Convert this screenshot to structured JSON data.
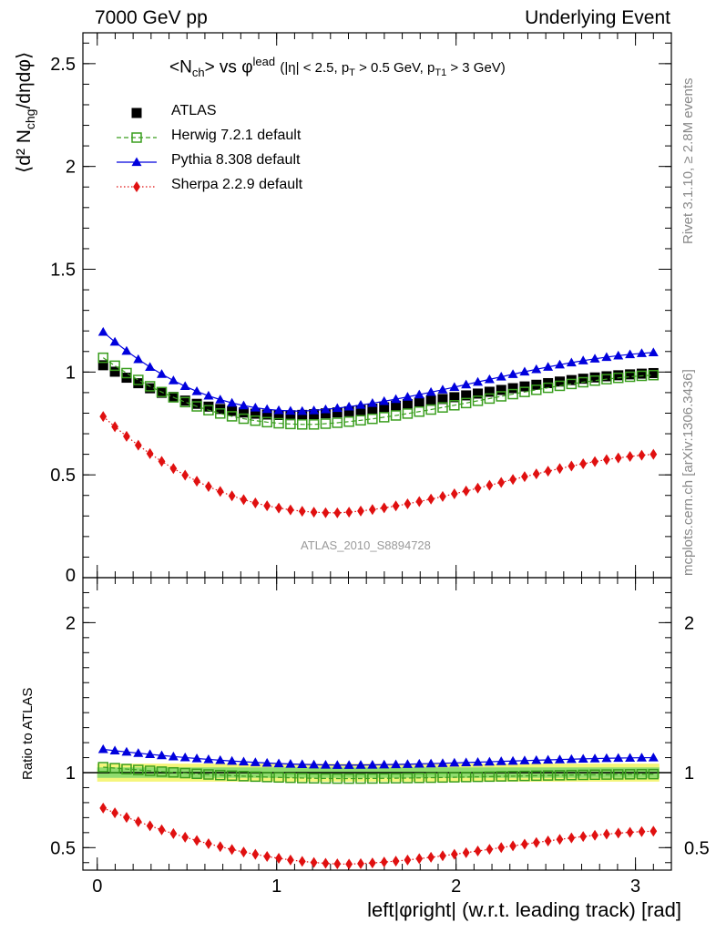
{
  "header": {
    "left": "7000 GeV pp",
    "right": "Underlying Event"
  },
  "side_labels": {
    "rivet": "Rivet 3.1.10, ≥ 2.8M events",
    "mcplots": "mcplots.cern.ch [arXiv:1306.3436]"
  },
  "watermark": "ATLAS_2010_S8894728",
  "chart_data": {
    "type": "scatter",
    "title_main": "<N",
    "title_sub": "ch",
    "title_mid": "> vs φ",
    "title_sup": "lead",
    "title_cut": "(|η| < 2.5, p",
    "title_cut_sub1": "T",
    "title_cut2": " > 0.5 GeV, p",
    "title_cut_sub2": "T1",
    "title_cut3": " > 3 GeV)",
    "ylabel_main": "⟨d² N",
    "ylabel_sub": "chg",
    "ylabel_end": "/dηdφ⟩",
    "ratio_ylabel": "Ratio to ATLAS",
    "xlabel": "left|φright| (w.r.t. leading track) [rad]",
    "xlim": [
      -0.08,
      3.2
    ],
    "ylim_main": [
      0,
      2.65
    ],
    "ylim_ratio": [
      0.35,
      2.3
    ],
    "x_ticks": [
      0,
      1,
      2,
      3
    ],
    "y_ticks_main": [
      0.5,
      1,
      1.5,
      2,
      2.5
    ],
    "y_ticks_main_labels": [
      "0.5",
      "1",
      "1.5",
      "2",
      "2.5"
    ],
    "y_tick_zero_label": "0",
    "y_ticks_ratio": [
      0.5,
      1,
      2
    ],
    "y_ticks_ratio_labels": [
      "0.5",
      "1",
      "2"
    ],
    "x_tick_labels": [
      "0",
      "1",
      "2",
      "3"
    ],
    "x_ratio_range": [
      0.0,
      3.1
    ],
    "series": [
      {
        "name": "ATLAS",
        "color": "#000000",
        "marker": "square-filled",
        "line": "none",
        "y_start": 1.05,
        "y_min": 0.79,
        "y_min_x": 1.1,
        "y_end": 0.995,
        "ratio": null
      },
      {
        "name": "Herwig 7.2.1 default",
        "color": "#3a9e1e",
        "marker": "square-open",
        "line": "dashed",
        "y_start": 1.09,
        "y_min": 0.745,
        "y_min_x": 1.2,
        "y_end": 0.985,
        "ratio_start": 1.04,
        "ratio_mid": 0.96,
        "ratio_end": 0.99
      },
      {
        "name": "Pythia 8.308 default",
        "color": "#0000dd",
        "marker": "triangle-filled",
        "line": "solid",
        "y_start": 1.22,
        "y_min": 0.81,
        "y_min_x": 1.15,
        "y_end": 1.095,
        "ratio_start": 1.16,
        "ratio_mid": 1.05,
        "ratio_end": 1.1
      },
      {
        "name": "Sherpa 2.2.9 default",
        "color": "#e01010",
        "marker": "diamond-filled",
        "line": "dotted",
        "y_start": 0.81,
        "y_min": 0.315,
        "y_min_x": 1.35,
        "y_end": 0.6,
        "ratio_start": 0.78,
        "ratio_mid": 0.39,
        "ratio_end": 0.61
      }
    ],
    "band_colors": {
      "inner": "#8fdc6e",
      "outer": "#f5f57a"
    }
  }
}
